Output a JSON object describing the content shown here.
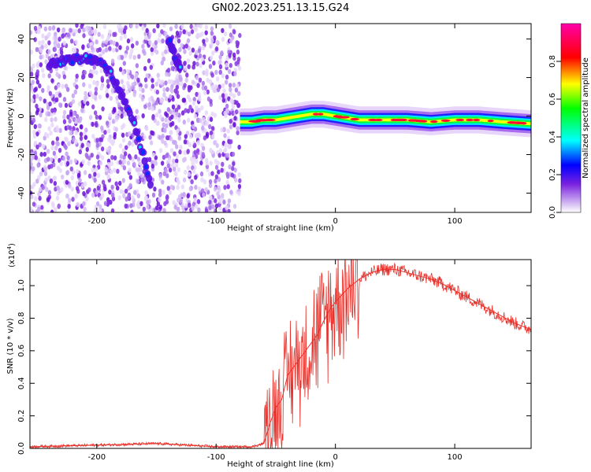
{
  "title": "GN02.2023.251.13.15.G24",
  "chart_data": [
    {
      "type": "heatmap",
      "xlabel": "Height of straight line (km)",
      "ylabel": "Frequency (Hz)",
      "xlim": [
        -256,
        164
      ],
      "ylim": [
        -50,
        48
      ],
      "xticks": [
        -200,
        -100,
        0,
        100
      ],
      "yticks": [
        -40,
        -20,
        0,
        20,
        40
      ],
      "colorbar": {
        "label": "Normalized spectral amplitude",
        "range": [
          0,
          1
        ],
        "ticks": [
          "0.0",
          "0.2",
          "0.4",
          "0.6",
          "0.8"
        ],
        "colors": [
          "#ffffff",
          "#8a2be2",
          "#0000ff",
          "#00ffff",
          "#00ff00",
          "#ffff00",
          "#ff0000",
          "#ff00aa"
        ]
      },
      "ridge": {
        "x": [
          -240,
          -225,
          -210,
          -200,
          -190,
          -180,
          -170,
          -160,
          -155
        ],
        "y": [
          27,
          29,
          30,
          29,
          24,
          12,
          -2,
          -22,
          -35
        ]
      },
      "secondary_ridge": {
        "x": [
          -140,
          -130
        ],
        "y": [
          40,
          24
        ]
      },
      "signal_line": {
        "x": [
          -80,
          -70,
          -60,
          -50,
          -40,
          -30,
          -20,
          -10,
          0,
          20,
          40,
          60,
          80,
          100,
          120,
          140,
          164
        ],
        "y": [
          -3,
          -3,
          -2,
          -2,
          -1,
          0,
          1,
          1,
          0,
          -2,
          -2,
          -2,
          -3,
          -2,
          -2,
          -3,
          -4
        ]
      }
    },
    {
      "type": "line",
      "xlabel": "Height of straight line (km)",
      "ylabel": "SNR (10 * v/v)",
      "yscale_label": "(x10",
      "yscale_exp": "4",
      "yscale_close": ")",
      "xlim": [
        -256,
        164
      ],
      "ylim": [
        0,
        1.16
      ],
      "xticks": [
        -200,
        -100,
        0,
        100
      ],
      "yticks": [
        "0.0",
        "0.2",
        "0.4",
        "0.6",
        "0.8",
        "1.0"
      ],
      "series": [
        {
          "color": "#e8302a",
          "x": [
            -256,
            -230,
            -200,
            -150,
            -100,
            -70,
            -60,
            -55,
            -50,
            -45,
            -40,
            -35,
            -30,
            -25,
            -20,
            -15,
            -10,
            -5,
            0,
            10,
            20,
            30,
            40,
            50,
            60,
            70,
            80,
            90,
            100,
            110,
            120,
            130,
            140,
            150,
            164
          ],
          "y": [
            0.01,
            0.015,
            0.02,
            0.03,
            0.01,
            0.01,
            0.03,
            0.15,
            0.25,
            0.3,
            0.45,
            0.5,
            0.55,
            0.6,
            0.65,
            0.7,
            0.78,
            0.85,
            0.9,
            0.98,
            1.04,
            1.08,
            1.1,
            1.1,
            1.08,
            1.06,
            1.04,
            1.01,
            0.97,
            0.93,
            0.89,
            0.85,
            0.81,
            0.77,
            0.73
          ]
        }
      ]
    }
  ]
}
